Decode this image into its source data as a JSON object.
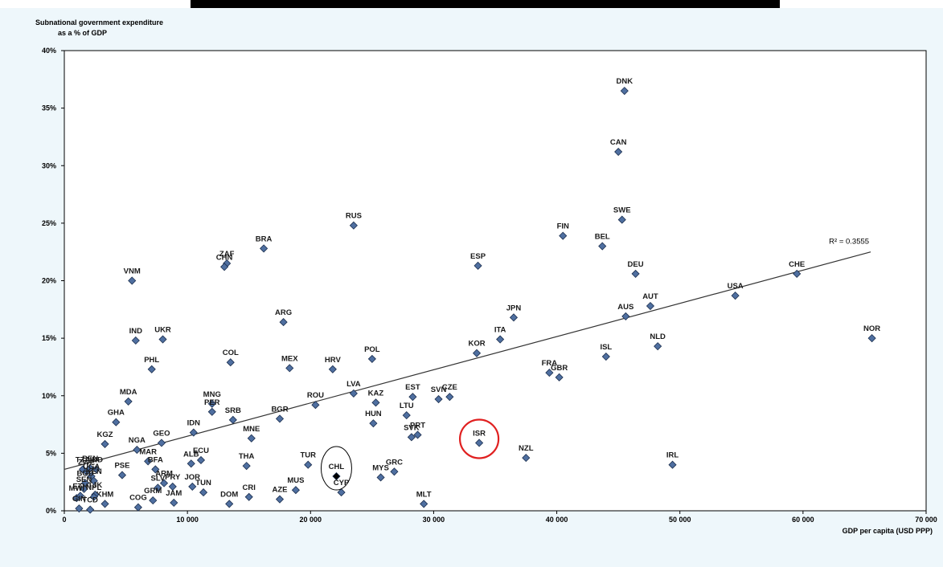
{
  "chart_data": {
    "type": "scatter",
    "ylabel_line1": "Subnational  government expenditure",
    "ylabel_line2": "as a % of GDP",
    "xlabel": "GDP per capita (USD PPP)",
    "x_ticks": [
      "0",
      "10 000",
      "20 000",
      "30 000",
      "40 000",
      "50 000",
      "60 000",
      "70 000"
    ],
    "y_ticks": [
      "0%",
      "5%",
      "10%",
      "15%",
      "20%",
      "25%",
      "30%",
      "35%",
      "40%"
    ],
    "xlim": [
      0,
      70000
    ],
    "ylim": [
      0,
      40
    ],
    "trendline_label": "R² = 0.3555",
    "trendline": {
      "x": [
        0,
        65500
      ],
      "y": [
        3.6,
        22.5
      ]
    },
    "colors": {
      "marker": "#4f6fa0",
      "highlight_marker": "#000000",
      "circle_isr": "#e02020",
      "circle_chl": "#000000"
    },
    "highlight_circles": [
      "ISR",
      "CHL"
    ],
    "points": [
      {
        "label": "DNK",
        "x": 45500,
        "y": 36.5
      },
      {
        "label": "CAN",
        "x": 45000,
        "y": 31.2
      },
      {
        "label": "SWE",
        "x": 45300,
        "y": 25.3
      },
      {
        "label": "FIN",
        "x": 40500,
        "y": 23.9
      },
      {
        "label": "BEL",
        "x": 43700,
        "y": 23.0
      },
      {
        "label": "RUS",
        "x": 23500,
        "y": 24.8
      },
      {
        "label": "BRA",
        "x": 16200,
        "y": 22.8
      },
      {
        "label": "ZAF",
        "x": 13200,
        "y": 21.5
      },
      {
        "label": "CHN",
        "x": 13000,
        "y": 21.2
      },
      {
        "label": "ESP",
        "x": 33600,
        "y": 21.3
      },
      {
        "label": "DEU",
        "x": 46400,
        "y": 20.6
      },
      {
        "label": "CHE",
        "x": 59500,
        "y": 20.6
      },
      {
        "label": "VNM",
        "x": 5500,
        "y": 20.0
      },
      {
        "label": "USA",
        "x": 54500,
        "y": 18.7
      },
      {
        "label": "AUT",
        "x": 47600,
        "y": 17.8
      },
      {
        "label": "AUS",
        "x": 45600,
        "y": 16.9
      },
      {
        "label": "JPN",
        "x": 36500,
        "y": 16.8
      },
      {
        "label": "ARG",
        "x": 17800,
        "y": 16.4
      },
      {
        "label": "NOR",
        "x": 65600,
        "y": 15.0
      },
      {
        "label": "IND",
        "x": 5800,
        "y": 14.8
      },
      {
        "label": "UKR",
        "x": 8000,
        "y": 14.9
      },
      {
        "label": "ITA",
        "x": 35400,
        "y": 14.9
      },
      {
        "label": "NLD",
        "x": 48200,
        "y": 14.3
      },
      {
        "label": "KOR",
        "x": 33500,
        "y": 13.7
      },
      {
        "label": "ISL",
        "x": 44000,
        "y": 13.4
      },
      {
        "label": "POL",
        "x": 25000,
        "y": 13.2
      },
      {
        "label": "COL",
        "x": 13500,
        "y": 12.9
      },
      {
        "label": "PHL",
        "x": 7100,
        "y": 12.3
      },
      {
        "label": "MEX",
        "x": 18300,
        "y": 12.4
      },
      {
        "label": "HRV",
        "x": 21800,
        "y": 12.3
      },
      {
        "label": "FRA",
        "x": 39400,
        "y": 12.0
      },
      {
        "label": "GBR",
        "x": 40200,
        "y": 11.6
      },
      {
        "label": "LVA",
        "x": 23500,
        "y": 10.2
      },
      {
        "label": "EST",
        "x": 28300,
        "y": 9.9
      },
      {
        "label": "SVN",
        "x": 30400,
        "y": 9.7
      },
      {
        "label": "CZE",
        "x": 31300,
        "y": 9.9
      },
      {
        "label": "MDA",
        "x": 5200,
        "y": 9.5
      },
      {
        "label": "MNG",
        "x": 12000,
        "y": 9.3
      },
      {
        "label": "KAZ",
        "x": 25300,
        "y": 9.4
      },
      {
        "label": "ROU",
        "x": 20400,
        "y": 9.2
      },
      {
        "label": "PER",
        "x": 12000,
        "y": 8.6
      },
      {
        "label": "LTU",
        "x": 27800,
        "y": 8.3
      },
      {
        "label": "SRB",
        "x": 13700,
        "y": 7.9
      },
      {
        "label": "BGR",
        "x": 17500,
        "y": 8.0
      },
      {
        "label": "GHA",
        "x": 4200,
        "y": 7.7
      },
      {
        "label": "HUN",
        "x": 25100,
        "y": 7.6
      },
      {
        "label": "IDN",
        "x": 10500,
        "y": 6.8
      },
      {
        "label": "SVK",
        "x": 28200,
        "y": 6.4
      },
      {
        "label": "PRT",
        "x": 28700,
        "y": 6.6
      },
      {
        "label": "MNE",
        "x": 15200,
        "y": 6.3
      },
      {
        "label": "ISR",
        "x": 33700,
        "y": 5.9
      },
      {
        "label": "GEO",
        "x": 7900,
        "y": 5.9
      },
      {
        "label": "KGZ",
        "x": 3300,
        "y": 5.8
      },
      {
        "label": "NGA",
        "x": 5900,
        "y": 5.3
      },
      {
        "label": "NZL",
        "x": 37500,
        "y": 4.6
      },
      {
        "label": "ECU",
        "x": 11100,
        "y": 4.4
      },
      {
        "label": "ALB",
        "x": 10300,
        "y": 4.1
      },
      {
        "label": "MAR",
        "x": 6800,
        "y": 4.3
      },
      {
        "label": "TUR",
        "x": 19800,
        "y": 4.0
      },
      {
        "label": "THA",
        "x": 14800,
        "y": 3.9
      },
      {
        "label": "IRL",
        "x": 49400,
        "y": 4.0
      },
      {
        "label": "TZA",
        "x": 1500,
        "y": 3.6
      },
      {
        "label": "ZWE",
        "x": 1800,
        "y": 3.4
      },
      {
        "label": "BEN",
        "x": 2100,
        "y": 3.7
      },
      {
        "label": "IND",
        "x": 2600,
        "y": 3.6
      },
      {
        "label": "GRC",
        "x": 26800,
        "y": 3.4
      },
      {
        "label": "BFA",
        "x": 7400,
        "y": 3.6
      },
      {
        "label": "CHL",
        "x": 22100,
        "y": 3.0
      },
      {
        "label": "MYS",
        "x": 25700,
        "y": 2.9
      },
      {
        "label": "PSE",
        "x": 4700,
        "y": 3.1
      },
      {
        "label": "UGA",
        "x": 2200,
        "y": 3.0
      },
      {
        "label": "ARM",
        "x": 8100,
        "y": 2.4
      },
      {
        "label": "PRY",
        "x": 8800,
        "y": 2.1
      },
      {
        "label": "JOR",
        "x": 10400,
        "y": 2.1
      },
      {
        "label": "SLV",
        "x": 7600,
        "y": 2.0
      },
      {
        "label": "BGD",
        "x": 1700,
        "y": 2.4
      },
      {
        "label": "KEN",
        "x": 2400,
        "y": 2.6
      },
      {
        "label": "SEN",
        "x": 1600,
        "y": 1.9
      },
      {
        "label": "AZE",
        "x": 17500,
        "y": 1.0
      },
      {
        "label": "MUS",
        "x": 18800,
        "y": 1.8
      },
      {
        "label": "TUN",
        "x": 11300,
        "y": 1.6
      },
      {
        "label": "GRM",
        "x": 7200,
        "y": 0.9
      },
      {
        "label": "CYP",
        "x": 22500,
        "y": 1.6
      },
      {
        "label": "CRI",
        "x": 15000,
        "y": 1.2
      },
      {
        "label": "DOM",
        "x": 13400,
        "y": 0.6
      },
      {
        "label": "JAM",
        "x": 8900,
        "y": 0.7
      },
      {
        "label": "KHM",
        "x": 3300,
        "y": 0.6
      },
      {
        "label": "MWI",
        "x": 1000,
        "y": 1.1
      },
      {
        "label": "ETH",
        "x": 1300,
        "y": 1.3
      },
      {
        "label": "TJK",
        "x": 2500,
        "y": 1.4
      },
      {
        "label": "NPL",
        "x": 2400,
        "y": 1.2
      },
      {
        "label": "MLT",
        "x": 29200,
        "y": 0.6
      },
      {
        "label": "COG",
        "x": 6000,
        "y": 0.3
      },
      {
        "label": "GIN",
        "x": 1200,
        "y": 0.2
      },
      {
        "label": "TCD",
        "x": 2100,
        "y": 0.1
      }
    ]
  }
}
